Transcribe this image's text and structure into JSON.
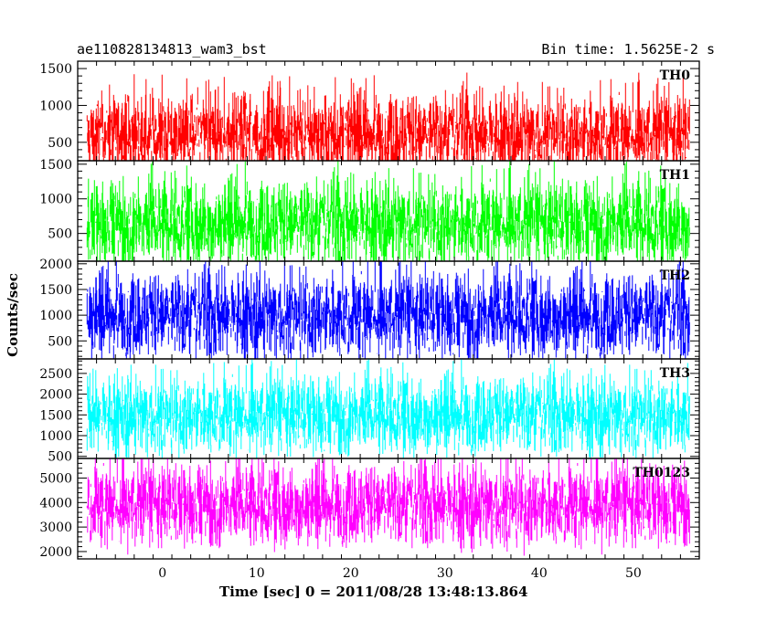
{
  "header": {
    "title_left": "ae110828134813_wam3_bst",
    "title_right": "Bin time: 1.5625E-2 s"
  },
  "chart_data": {
    "type": "line",
    "xlabel": "Time [sec] 0 = 2011/08/28 13:48:13.864",
    "ylabel": "Counts/sec",
    "xlim": [
      -9,
      57
    ],
    "x_ticks": [
      0,
      10,
      20,
      30,
      40,
      50
    ],
    "x_range_data": [
      -8,
      56
    ],
    "bin_time_s": 0.015625,
    "grid": false,
    "panels": [
      {
        "name": "TH0",
        "color": "#ff0000",
        "ylim": [
          250,
          1600
        ],
        "y_ticks": [
          500,
          1000,
          1500
        ],
        "mean": 600,
        "typical_low": 200,
        "typical_high": 1150,
        "max_spike": 1550
      },
      {
        "name": "TH1",
        "color": "#00ff00",
        "ylim": [
          100,
          1550
        ],
        "y_ticks": [
          500,
          1000,
          1500
        ],
        "mean": 650,
        "typical_low": 150,
        "typical_high": 1200,
        "max_spike": 1550
      },
      {
        "name": "TH2",
        "color": "#0000ff",
        "ylim": [
          150,
          2050
        ],
        "y_ticks": [
          500,
          1000,
          1500,
          2000
        ],
        "mean": 1000,
        "typical_low": 300,
        "typical_high": 1700,
        "max_spike": 2050
      },
      {
        "name": "TH3",
        "color": "#00ffff",
        "ylim": [
          450,
          2850
        ],
        "y_ticks": [
          500,
          1000,
          1500,
          2000,
          2500
        ],
        "mean": 1500,
        "typical_low": 700,
        "typical_high": 2300,
        "max_spike": 2800
      },
      {
        "name": "TH0123",
        "color": "#ff00ff",
        "ylim": [
          1700,
          5800
        ],
        "y_ticks": [
          2000,
          3000,
          4000,
          5000
        ],
        "mean": 3900,
        "typical_low": 2400,
        "typical_high": 5200,
        "max_spike": 5700
      }
    ]
  }
}
